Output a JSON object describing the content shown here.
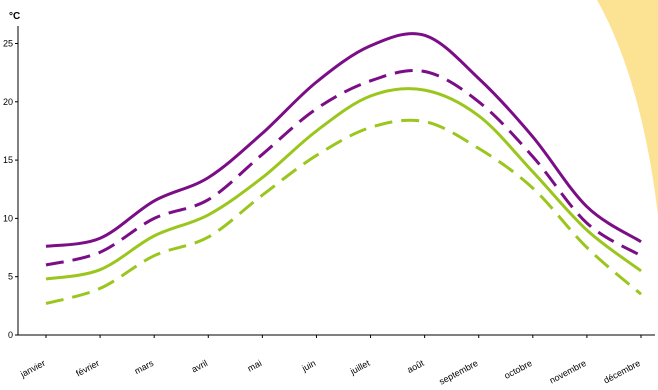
{
  "chart_data": {
    "type": "line",
    "title": "",
    "xlabel": "",
    "ylabel": "°C",
    "ylim": [
      0,
      26.5
    ],
    "yticks": [
      0,
      5,
      10,
      15,
      20,
      25
    ],
    "grid": false,
    "legend": "none",
    "categories": [
      "janvier",
      "février",
      "mars",
      "avril",
      "mai",
      "juin",
      "juillet",
      "août",
      "septembre",
      "octobre",
      "novembre",
      "décembre"
    ],
    "series": [
      {
        "name": "",
        "color": "#7b0d86",
        "dash": "solid",
        "values": [
          7.6,
          8.3,
          11.5,
          13.5,
          17.3,
          21.7,
          24.8,
          25.7,
          22.0,
          17.0,
          11.0,
          8.0
        ]
      },
      {
        "name": "",
        "color": "#7b0d86",
        "dash": "dashed",
        "values": [
          6.0,
          7.1,
          10.0,
          11.6,
          15.5,
          19.4,
          21.8,
          22.6,
          20.0,
          15.3,
          9.6,
          6.8
        ]
      },
      {
        "name": "",
        "color": "#9ac61d",
        "dash": "solid",
        "values": [
          4.8,
          5.6,
          8.5,
          10.3,
          13.5,
          17.5,
          20.5,
          21.0,
          18.8,
          14.0,
          9.0,
          5.5
        ]
      },
      {
        "name": "",
        "color": "#9ac61d",
        "dash": "dashed",
        "values": [
          2.7,
          4.0,
          6.8,
          8.4,
          12.0,
          15.4,
          17.8,
          18.3,
          16.0,
          12.6,
          7.5,
          3.5
        ]
      }
    ],
    "background_accent_color": "#fce293"
  }
}
